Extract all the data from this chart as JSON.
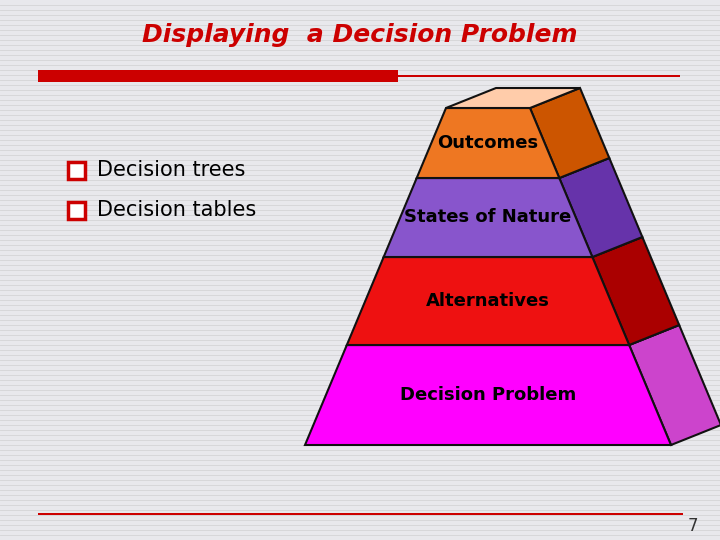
{
  "title": "Displaying  a Decision Problem",
  "title_color": "#cc0000",
  "title_fontsize": 18,
  "background_color": "#e8e8ec",
  "bullet_items": [
    "Decision trees",
    "Decision tables"
  ],
  "bullet_color": "#cc0000",
  "bullet_text_color": "#000000",
  "pyramid_layers": [
    {
      "label": "Decision Problem",
      "face_color": "#ff00ff",
      "side_color": "#cc44cc",
      "top_color": "#ffaaee"
    },
    {
      "label": "Alternatives",
      "face_color": "#ee1111",
      "side_color": "#aa0000",
      "top_color": "#ffaaaa"
    },
    {
      "label": "States of Nature",
      "face_color": "#8855cc",
      "side_color": "#6633aa",
      "top_color": "#cc99ff"
    },
    {
      "label": "Outcomes",
      "face_color": "#ee7722",
      "side_color": "#cc5500",
      "top_color": "#ffccaa"
    }
  ],
  "page_number": "7",
  "line_color": "#cc0000",
  "stripe_color": "#cccccc"
}
